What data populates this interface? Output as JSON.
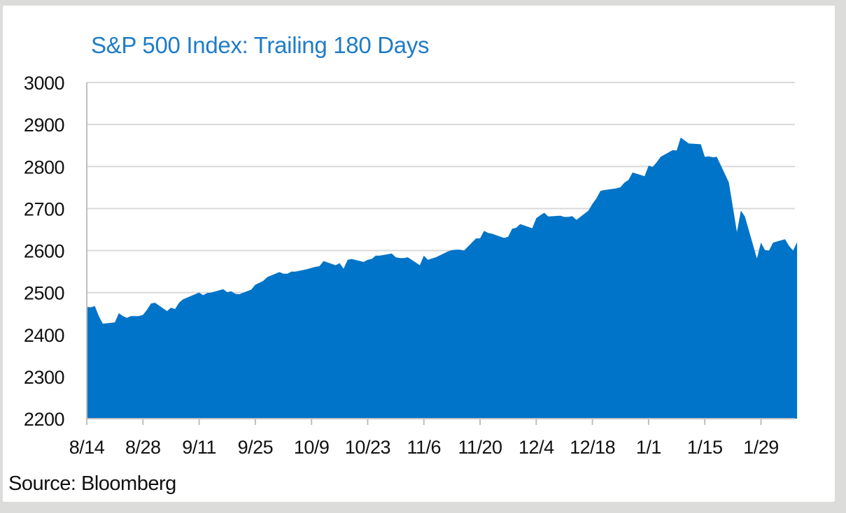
{
  "chart_data": {
    "type": "area",
    "title": "S&P 500 Index: Trailing 180 Days",
    "xlabel": "",
    "ylabel": "",
    "source": "Source: Bloomberg",
    "ylim": [
      2200,
      3000
    ],
    "yticks": [
      2200,
      2300,
      2400,
      2500,
      2600,
      2700,
      2800,
      2900,
      3000
    ],
    "xtick_labels": [
      "8/14",
      "8/28",
      "9/11",
      "9/25",
      "10/9",
      "10/23",
      "11/6",
      "11/20",
      "12/4",
      "12/18",
      "1/1",
      "1/15",
      "1/29"
    ],
    "grid": true,
    "legend": "none",
    "colors": {
      "fill": "#0074c8",
      "grid": "#d9d9d9",
      "axis": "#bfbfbf",
      "title": "#1f7cc7"
    },
    "series": [
      {
        "x": [
          0,
          1,
          2,
          3,
          4,
          6,
          7,
          8,
          9,
          10,
          11,
          13,
          14,
          15,
          16,
          17,
          20,
          21,
          22,
          23,
          24,
          27,
          28,
          29,
          30,
          31,
          34,
          35,
          36,
          37,
          38,
          41,
          42,
          43,
          44,
          45,
          48,
          49,
          50,
          51,
          52,
          55,
          56,
          57,
          58,
          59,
          62,
          63,
          64,
          65,
          66,
          69,
          70,
          71,
          72,
          73,
          76,
          77,
          78,
          79,
          80,
          83,
          84,
          85,
          86,
          87,
          90,
          91,
          92,
          93,
          94,
          97,
          98,
          99,
          100,
          101,
          104,
          105,
          106,
          107,
          108,
          111,
          112,
          113,
          114,
          115,
          118,
          119,
          120,
          121,
          122,
          125,
          126,
          127,
          128,
          129,
          132,
          133,
          134,
          135,
          136,
          139,
          140,
          141,
          142,
          143,
          146,
          147,
          148,
          149,
          150,
          153,
          154,
          155,
          156,
          157,
          160,
          161,
          162,
          163,
          164,
          167,
          168,
          169,
          170,
          171,
          174,
          175,
          176,
          177
        ],
        "y": [
          2466,
          2465,
          2468,
          2444,
          2426,
          2428,
          2429,
          2451,
          2444,
          2440,
          2444,
          2444,
          2447,
          2459,
          2474,
          2476,
          2456,
          2464,
          2461,
          2476,
          2484,
          2496,
          2500,
          2494,
          2499,
          2500,
          2508,
          2501,
          2503,
          2497,
          2496,
          2507,
          2519,
          2523,
          2528,
          2537,
          2549,
          2545,
          2545,
          2550,
          2550,
          2556,
          2559,
          2561,
          2563,
          2575,
          2565,
          2570,
          2557,
          2578,
          2580,
          2573,
          2578,
          2580,
          2588,
          2588,
          2593,
          2584,
          2582,
          2582,
          2584,
          2565,
          2588,
          2578,
          2581,
          2584,
          2598,
          2601,
          2602,
          2602,
          2600,
          2629,
          2629,
          2647,
          2642,
          2640,
          2630,
          2633,
          2652,
          2654,
          2663,
          2653,
          2677,
          2684,
          2690,
          2681,
          2683,
          2680,
          2680,
          2682,
          2673,
          2695,
          2711,
          2724,
          2742,
          2744,
          2748,
          2751,
          2762,
          2768,
          2786,
          2777,
          2802,
          2799,
          2810,
          2823,
          2839,
          2838,
          2869,
          2862,
          2855,
          2853,
          2823,
          2824,
          2822,
          2823,
          2762,
          2704,
          2644,
          2695,
          2681,
          2581,
          2619,
          2601,
          2600,
          2619,
          2627,
          2611,
          2600,
          2620
        ]
      }
    ]
  }
}
